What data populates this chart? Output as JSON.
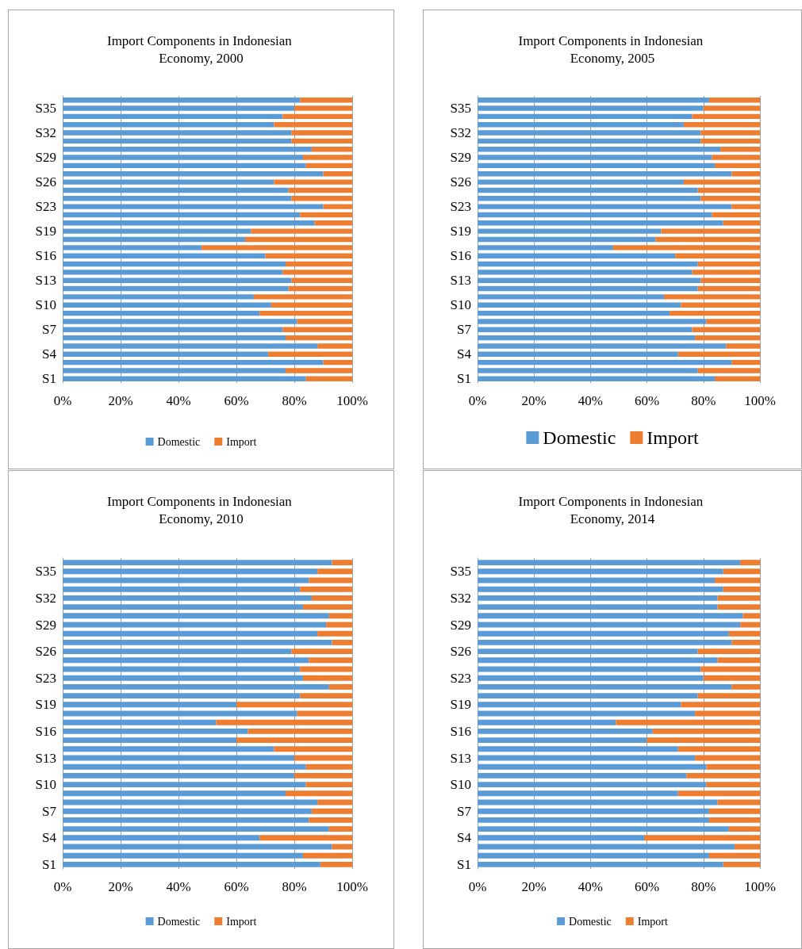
{
  "chart_data": [
    {
      "type": "bar",
      "orientation": "horizontal",
      "stacked": true,
      "title": "Import Components in Indonesian Economy, 2000",
      "categories": [
        null,
        "S35",
        null,
        null,
        "S32",
        null,
        null,
        "S29",
        null,
        null,
        "S26",
        null,
        null,
        "S23",
        null,
        null,
        "S19",
        null,
        null,
        "S16",
        null,
        null,
        "S13",
        null,
        null,
        "S10",
        null,
        null,
        "S7",
        null,
        null,
        "S4",
        null,
        null,
        "S1"
      ],
      "series": [
        {
          "name": "Domestic",
          "color": "#5b9bd5",
          "values": [
            82,
            80,
            76,
            73,
            79,
            79,
            86,
            83,
            84,
            90,
            73,
            78,
            79,
            90,
            82,
            87,
            65,
            63,
            48,
            70,
            77,
            76,
            79,
            78,
            66,
            72,
            68,
            81,
            76,
            77,
            88,
            71,
            90,
            77,
            84
          ]
        },
        {
          "name": "Import",
          "color": "#ed7d31",
          "values": [
            18,
            20,
            24,
            27,
            21,
            21,
            14,
            17,
            16,
            10,
            27,
            22,
            21,
            10,
            18,
            13,
            35,
            37,
            52,
            30,
            23,
            24,
            21,
            22,
            34,
            28,
            32,
            19,
            24,
            23,
            12,
            29,
            10,
            23,
            16
          ]
        }
      ],
      "xlim": [
        0,
        100
      ],
      "xticks": [
        {
          "value": 0,
          "label": "0%"
        },
        {
          "value": 20,
          "label": "20%"
        },
        {
          "value": 40,
          "label": "40%"
        },
        {
          "value": 60,
          "label": "60%"
        },
        {
          "value": 80,
          "label": "80%"
        },
        {
          "value": 100,
          "label": "100%"
        }
      ],
      "grid": "x",
      "legend": "bottom"
    },
    {
      "type": "bar",
      "orientation": "horizontal",
      "stacked": true,
      "title": "Import Components in Indonesian Economy, 2005",
      "categories": [
        null,
        "S35",
        null,
        null,
        "S32",
        null,
        null,
        "S29",
        null,
        null,
        "S26",
        null,
        null,
        "S23",
        null,
        null,
        "S19",
        null,
        null,
        "S16",
        null,
        null,
        "S13",
        null,
        null,
        "S10",
        null,
        null,
        "S7",
        null,
        null,
        "S4",
        null,
        null,
        "S1"
      ],
      "series": [
        {
          "name": "Domestic",
          "color": "#5b9bd5",
          "values": [
            82,
            80,
            76,
            73,
            79,
            79,
            86,
            83,
            84,
            90,
            73,
            78,
            79,
            90,
            83,
            87,
            65,
            63,
            48,
            70,
            78,
            76,
            79,
            78,
            66,
            72,
            68,
            81,
            76,
            77,
            88,
            71,
            90,
            78,
            84
          ]
        },
        {
          "name": "Import",
          "color": "#ed7d31",
          "values": [
            18,
            20,
            24,
            27,
            21,
            21,
            14,
            17,
            16,
            10,
            27,
            22,
            21,
            10,
            17,
            13,
            35,
            37,
            52,
            30,
            22,
            24,
            21,
            22,
            34,
            28,
            32,
            19,
            24,
            23,
            12,
            29,
            10,
            22,
            16
          ]
        }
      ],
      "xlim": [
        0,
        100
      ],
      "xticks": [
        {
          "value": 0,
          "label": "0%"
        },
        {
          "value": 20,
          "label": "20%"
        },
        {
          "value": 40,
          "label": "40%"
        },
        {
          "value": 60,
          "label": "60%"
        },
        {
          "value": 80,
          "label": "80%"
        },
        {
          "value": 100,
          "label": "100%"
        }
      ],
      "grid": "x",
      "legend": "bottom"
    },
    {
      "type": "bar",
      "orientation": "horizontal",
      "stacked": true,
      "title": "Import Components in Indonesian Economy, 2010",
      "categories": [
        null,
        "S35",
        null,
        null,
        "S32",
        null,
        null,
        "S29",
        null,
        null,
        "S26",
        null,
        null,
        "S23",
        null,
        null,
        "S19",
        null,
        null,
        "S16",
        null,
        null,
        "S13",
        null,
        null,
        "S10",
        null,
        null,
        "S7",
        null,
        null,
        "S4",
        null,
        null,
        "S1"
      ],
      "series": [
        {
          "name": "Domestic",
          "color": "#5b9bd5",
          "values": [
            93,
            88,
            85,
            82,
            86,
            83,
            92,
            91,
            88,
            93,
            79,
            85,
            82,
            83,
            92,
            82,
            60,
            81,
            53,
            64,
            60,
            73,
            80,
            84,
            80,
            84,
            77,
            88,
            86,
            85,
            92,
            68,
            93,
            83,
            89
          ]
        },
        {
          "name": "Import",
          "color": "#ed7d31",
          "values": [
            7,
            12,
            15,
            18,
            14,
            17,
            8,
            9,
            12,
            7,
            21,
            15,
            18,
            17,
            8,
            18,
            40,
            19,
            47,
            36,
            40,
            27,
            20,
            16,
            20,
            16,
            23,
            12,
            14,
            15,
            8,
            32,
            7,
            17,
            11
          ]
        }
      ],
      "xlim": [
        0,
        100
      ],
      "xticks": [
        {
          "value": 0,
          "label": "0%"
        },
        {
          "value": 20,
          "label": "20%"
        },
        {
          "value": 40,
          "label": "40%"
        },
        {
          "value": 60,
          "label": "60%"
        },
        {
          "value": 80,
          "label": "80%"
        },
        {
          "value": 100,
          "label": "100%"
        }
      ],
      "grid": "x",
      "legend": "bottom"
    },
    {
      "type": "bar",
      "orientation": "horizontal",
      "stacked": true,
      "title": "Import Components in Indonesian Economy, 2014",
      "categories": [
        null,
        "S35",
        null,
        null,
        "S32",
        null,
        null,
        "S29",
        null,
        null,
        "S26",
        null,
        null,
        "S23",
        null,
        null,
        "S19",
        null,
        null,
        "S16",
        null,
        null,
        "S13",
        null,
        null,
        "S10",
        null,
        null,
        "S7",
        null,
        null,
        "S4",
        null,
        null,
        "S1"
      ],
      "series": [
        {
          "name": "Domestic",
          "color": "#5b9bd5",
          "values": [
            93,
            87,
            84,
            87,
            85,
            85,
            94,
            93,
            89,
            90,
            78,
            85,
            79,
            80,
            90,
            78,
            72,
            77,
            49,
            62,
            60,
            71,
            77,
            81,
            74,
            81,
            71,
            85,
            82,
            82,
            89,
            59,
            91,
            82,
            87
          ]
        },
        {
          "name": "Import",
          "color": "#ed7d31",
          "values": [
            7,
            13,
            16,
            13,
            15,
            15,
            6,
            7,
            11,
            10,
            22,
            15,
            21,
            20,
            10,
            22,
            28,
            23,
            51,
            38,
            40,
            29,
            23,
            19,
            26,
            19,
            29,
            15,
            18,
            18,
            11,
            41,
            9,
            18,
            13
          ]
        }
      ],
      "xlim": [
        0,
        100
      ],
      "xticks": [
        {
          "value": 0,
          "label": "0%"
        },
        {
          "value": 20,
          "label": "20%"
        },
        {
          "value": 40,
          "label": "40%"
        },
        {
          "value": 60,
          "label": "60%"
        },
        {
          "value": 80,
          "label": "80%"
        },
        {
          "value": 100,
          "label": "100%"
        }
      ],
      "grid": "x",
      "legend": "bottom"
    }
  ]
}
